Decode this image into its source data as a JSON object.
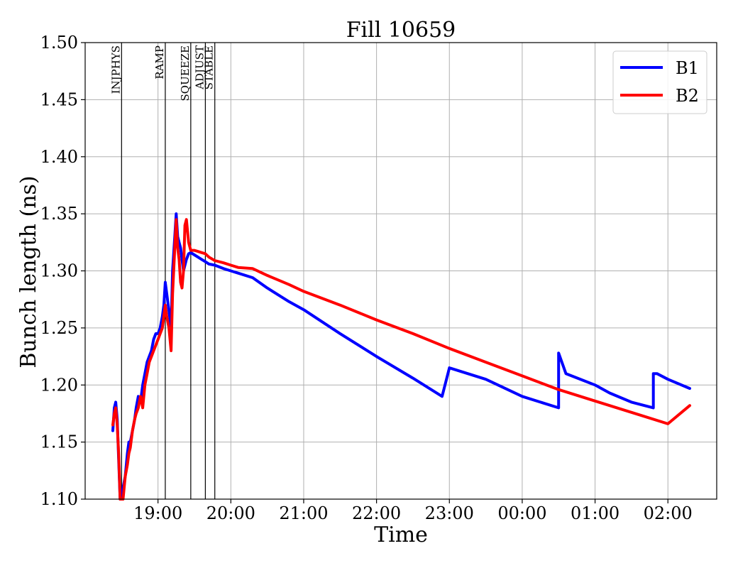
{
  "chart_data": {
    "type": "line",
    "title": "Fill 10659",
    "xlabel": "Time",
    "ylabel": "Bunch length (ns)",
    "x_unit": "hours of day (ticks wrap past 24:00)",
    "xlim": [
      18.0,
      26.67
    ],
    "ylim": [
      1.1,
      1.5
    ],
    "yticks": [
      {
        "value": 1.1,
        "label": "1.10"
      },
      {
        "value": 1.15,
        "label": "1.15"
      },
      {
        "value": 1.2,
        "label": "1.20"
      },
      {
        "value": 1.25,
        "label": "1.25"
      },
      {
        "value": 1.3,
        "label": "1.30"
      },
      {
        "value": 1.35,
        "label": "1.35"
      },
      {
        "value": 1.4,
        "label": "1.40"
      },
      {
        "value": 1.45,
        "label": "1.45"
      },
      {
        "value": 1.5,
        "label": "1.50"
      }
    ],
    "xticks": [
      {
        "value": 19,
        "label": "19:00"
      },
      {
        "value": 20,
        "label": "20:00"
      },
      {
        "value": 21,
        "label": "21:00"
      },
      {
        "value": 22,
        "label": "22:00"
      },
      {
        "value": 23,
        "label": "23:00"
      },
      {
        "value": 24,
        "label": "00:00"
      },
      {
        "value": 25,
        "label": "01:00"
      },
      {
        "value": 26,
        "label": "02:00"
      }
    ],
    "grid": true,
    "legend_position": "top-right",
    "phases": [
      {
        "name": "INJPHYS",
        "x": 18.5
      },
      {
        "name": "RAMP",
        "x": 19.1
      },
      {
        "name": "SQUEEZE",
        "x": 19.45
      },
      {
        "name": "ADJUST",
        "x": 19.65
      },
      {
        "name": "STABLE",
        "x": 19.78
      }
    ],
    "series": [
      {
        "name": "B1",
        "color": "#0000ff",
        "x": [
          18.38,
          18.4,
          18.42,
          18.44,
          18.46,
          18.48,
          18.5,
          18.52,
          18.55,
          18.58,
          18.6,
          18.62,
          18.65,
          18.68,
          18.7,
          18.73,
          18.76,
          18.79,
          18.82,
          18.85,
          18.88,
          18.91,
          18.94,
          18.97,
          19.0,
          19.03,
          19.06,
          19.08,
          19.1,
          19.12,
          19.15,
          19.18,
          19.2,
          19.23,
          19.25,
          19.27,
          19.29,
          19.31,
          19.33,
          19.35,
          19.37,
          19.39,
          19.42,
          19.45,
          19.5,
          19.55,
          19.6,
          19.65,
          19.7,
          19.78,
          19.9,
          20.0,
          20.1,
          20.3,
          20.5,
          20.8,
          21.0,
          21.5,
          22.0,
          22.5,
          22.9,
          23.0,
          23.5,
          24.0,
          24.5,
          24.5,
          24.6,
          24.8,
          25.0,
          25.2,
          25.5,
          25.8,
          25.8,
          25.85,
          26.0,
          26.3
        ],
        "y": [
          1.16,
          1.18,
          1.185,
          1.17,
          1.135,
          1.1,
          1.1,
          1.11,
          1.12,
          1.14,
          1.15,
          1.15,
          1.16,
          1.17,
          1.18,
          1.19,
          1.185,
          1.2,
          1.21,
          1.22,
          1.225,
          1.23,
          1.24,
          1.245,
          1.245,
          1.25,
          1.26,
          1.27,
          1.29,
          1.28,
          1.265,
          1.25,
          1.3,
          1.33,
          1.35,
          1.33,
          1.325,
          1.32,
          1.31,
          1.3,
          1.305,
          1.31,
          1.315,
          1.316,
          1.314,
          1.312,
          1.31,
          1.308,
          1.306,
          1.305,
          1.302,
          1.3,
          1.298,
          1.294,
          1.285,
          1.273,
          1.266,
          1.245,
          1.225,
          1.206,
          1.19,
          1.215,
          1.205,
          1.19,
          1.18,
          1.228,
          1.21,
          1.205,
          1.2,
          1.193,
          1.185,
          1.18,
          1.21,
          1.21,
          1.205,
          1.197
        ]
      },
      {
        "name": "B2",
        "color": "#ff0000",
        "x": [
          18.38,
          18.4,
          18.42,
          18.44,
          18.46,
          18.48,
          18.5,
          18.52,
          18.55,
          18.58,
          18.6,
          18.62,
          18.65,
          18.68,
          18.7,
          18.73,
          18.76,
          18.79,
          18.82,
          18.85,
          18.88,
          18.91,
          18.94,
          18.97,
          19.0,
          19.03,
          19.06,
          19.08,
          19.1,
          19.12,
          19.15,
          19.18,
          19.2,
          19.23,
          19.25,
          19.27,
          19.29,
          19.31,
          19.33,
          19.35,
          19.37,
          19.39,
          19.42,
          19.45,
          19.5,
          19.55,
          19.6,
          19.65,
          19.7,
          19.78,
          19.9,
          20.0,
          20.1,
          20.3,
          20.5,
          20.8,
          21.0,
          21.5,
          22.0,
          22.5,
          23.0,
          23.5,
          24.0,
          24.5,
          25.0,
          25.5,
          26.0,
          26.3
        ],
        "y": [
          1.165,
          1.175,
          1.18,
          1.165,
          1.14,
          1.1,
          1.1,
          1.1,
          1.12,
          1.13,
          1.14,
          1.145,
          1.16,
          1.17,
          1.175,
          1.18,
          1.19,
          1.18,
          1.2,
          1.21,
          1.22,
          1.225,
          1.23,
          1.235,
          1.24,
          1.245,
          1.25,
          1.26,
          1.27,
          1.26,
          1.25,
          1.23,
          1.28,
          1.32,
          1.345,
          1.32,
          1.31,
          1.29,
          1.285,
          1.3,
          1.34,
          1.345,
          1.325,
          1.318,
          1.318,
          1.317,
          1.316,
          1.315,
          1.312,
          1.309,
          1.307,
          1.305,
          1.303,
          1.302,
          1.296,
          1.288,
          1.282,
          1.27,
          1.257,
          1.245,
          1.232,
          1.22,
          1.208,
          1.196,
          1.186,
          1.176,
          1.166,
          1.182
        ]
      }
    ]
  }
}
